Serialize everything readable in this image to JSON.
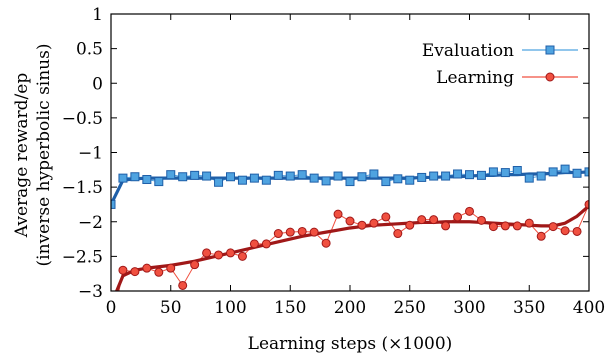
{
  "chart_data": {
    "type": "line",
    "title": "",
    "xlabel": "Learning steps (×1000)",
    "ylabel": "Average reward/ep",
    "ylabel2": "(inverse hyperbolic sinus)",
    "xlim": [
      0,
      400
    ],
    "ylim": [
      -3,
      1
    ],
    "xticks": [
      0,
      50,
      100,
      150,
      200,
      250,
      300,
      350,
      400
    ],
    "yticks": [
      -3,
      -2.5,
      -2,
      -1.5,
      -1,
      -0.5,
      0,
      0.5,
      1
    ],
    "ytick_labels": [
      "−3",
      "−2.5",
      "−2",
      "−1.5",
      "−1",
      "−0.5",
      "0",
      "0.5",
      "1"
    ],
    "grid": false,
    "legend_position": "top-right",
    "series": [
      {
        "name": "Evaluation",
        "color": "#1f5fa8",
        "marker_fill": "#4fa3e0",
        "marker": "square",
        "x": [
          0,
          10,
          20,
          30,
          40,
          50,
          60,
          70,
          80,
          90,
          100,
          110,
          120,
          130,
          140,
          150,
          160,
          170,
          180,
          190,
          200,
          210,
          220,
          230,
          240,
          250,
          260,
          270,
          280,
          290,
          300,
          310,
          320,
          330,
          340,
          350,
          360,
          370,
          380,
          390,
          400
        ],
        "values": [
          -1.75,
          -1.37,
          -1.35,
          -1.39,
          -1.42,
          -1.32,
          -1.35,
          -1.33,
          -1.34,
          -1.43,
          -1.35,
          -1.4,
          -1.37,
          -1.4,
          -1.33,
          -1.34,
          -1.32,
          -1.37,
          -1.41,
          -1.34,
          -1.42,
          -1.35,
          -1.31,
          -1.42,
          -1.38,
          -1.4,
          -1.36,
          -1.34,
          -1.34,
          -1.31,
          -1.32,
          -1.33,
          -1.28,
          -1.29,
          -1.26,
          -1.37,
          -1.34,
          -1.28,
          -1.24,
          -1.3,
          -1.28
        ],
        "trend": [
          -1.75,
          -1.4,
          -1.38,
          -1.37,
          -1.37,
          -1.37,
          -1.37,
          -1.37,
          -1.37,
          -1.37,
          -1.37,
          -1.37,
          -1.37,
          -1.37,
          -1.37,
          -1.37,
          -1.37,
          -1.37,
          -1.37,
          -1.37,
          -1.37,
          -1.37,
          -1.37,
          -1.37,
          -1.37,
          -1.37,
          -1.36,
          -1.36,
          -1.35,
          -1.35,
          -1.34,
          -1.33,
          -1.33,
          -1.32,
          -1.32,
          -1.31,
          -1.31,
          -1.3,
          -1.29,
          -1.29,
          -1.28
        ]
      },
      {
        "name": "Learning",
        "color": "#a01818",
        "marker_fill": "#f05040",
        "marker": "circle",
        "x": [
          0,
          10,
          20,
          30,
          40,
          50,
          60,
          70,
          80,
          90,
          100,
          110,
          120,
          130,
          140,
          150,
          160,
          170,
          180,
          190,
          200,
          210,
          220,
          230,
          240,
          250,
          260,
          270,
          280,
          290,
          300,
          310,
          320,
          330,
          340,
          350,
          360,
          370,
          380,
          390,
          400
        ],
        "values": [
          -3.6,
          -2.7,
          -2.72,
          -2.67,
          -2.73,
          -2.67,
          -2.92,
          -2.62,
          -2.45,
          -2.48,
          -2.45,
          -2.5,
          -2.32,
          -2.32,
          -2.17,
          -2.15,
          -2.14,
          -2.15,
          -2.31,
          -1.89,
          -1.99,
          -2.05,
          -2.02,
          -1.93,
          -2.17,
          -2.05,
          -1.97,
          -1.97,
          -2.06,
          -1.93,
          -1.85,
          -1.98,
          -2.07,
          -2.06,
          -2.06,
          -2.02,
          -2.21,
          -2.07,
          -2.13,
          -2.14,
          -1.75
        ],
        "trend": [
          -3.2,
          -2.78,
          -2.7,
          -2.67,
          -2.65,
          -2.63,
          -2.6,
          -2.57,
          -2.53,
          -2.49,
          -2.45,
          -2.41,
          -2.37,
          -2.33,
          -2.29,
          -2.25,
          -2.21,
          -2.18,
          -2.15,
          -2.12,
          -2.09,
          -2.07,
          -2.05,
          -2.04,
          -2.03,
          -2.02,
          -2.01,
          -2.01,
          -2.0,
          -2.0,
          -2.0,
          -2.01,
          -2.02,
          -2.03,
          -2.04,
          -2.05,
          -2.06,
          -2.06,
          -2.02,
          -1.92,
          -1.77
        ]
      }
    ]
  }
}
